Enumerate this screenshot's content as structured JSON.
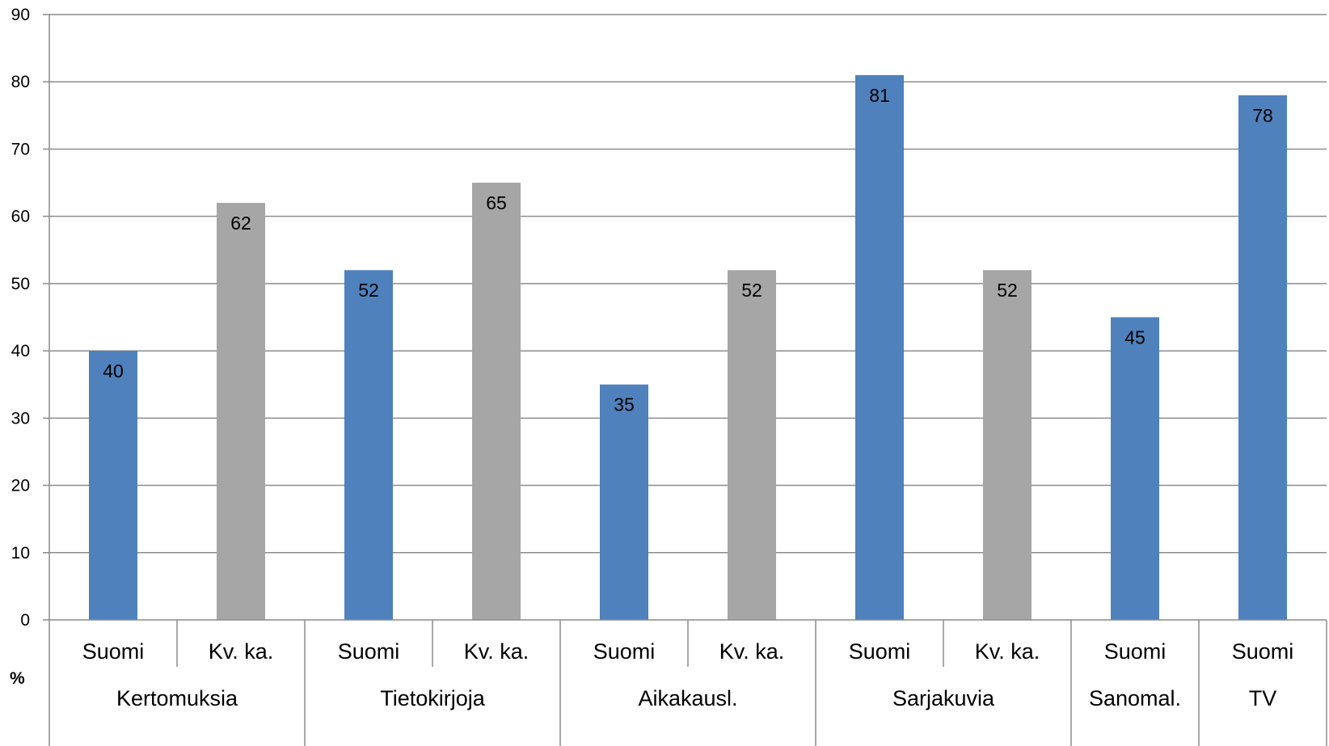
{
  "chart_data": {
    "type": "bar",
    "ylabel": "%",
    "ylim": [
      0,
      90
    ],
    "yticks": [
      0,
      10,
      20,
      30,
      40,
      50,
      60,
      70,
      80,
      90
    ],
    "grid": true,
    "legend": "none",
    "colors": {
      "Suomi": "#4f81bd",
      "Kv. ka.": "#a6a6a6"
    },
    "groups": [
      {
        "label": "Kertomuksia",
        "bars": [
          {
            "label": "Suomi",
            "value": 40
          },
          {
            "label": "Kv. ka.",
            "value": 62
          }
        ]
      },
      {
        "label": "Tietokirjoja",
        "bars": [
          {
            "label": "Suomi",
            "value": 52
          },
          {
            "label": "Kv. ka.",
            "value": 65
          }
        ]
      },
      {
        "label": "Aikakausl.",
        "bars": [
          {
            "label": "Suomi",
            "value": 35
          },
          {
            "label": "Kv. ka.",
            "value": 52
          }
        ]
      },
      {
        "label": "Sarjakuvia",
        "bars": [
          {
            "label": "Suomi",
            "value": 81
          },
          {
            "label": "Kv. ka.",
            "value": 52
          }
        ]
      },
      {
        "label": "Sanomal.",
        "bars": [
          {
            "label": "Suomi",
            "value": 45
          }
        ]
      },
      {
        "label": "TV",
        "bars": [
          {
            "label": "Suomi",
            "value": 78
          }
        ]
      }
    ]
  }
}
